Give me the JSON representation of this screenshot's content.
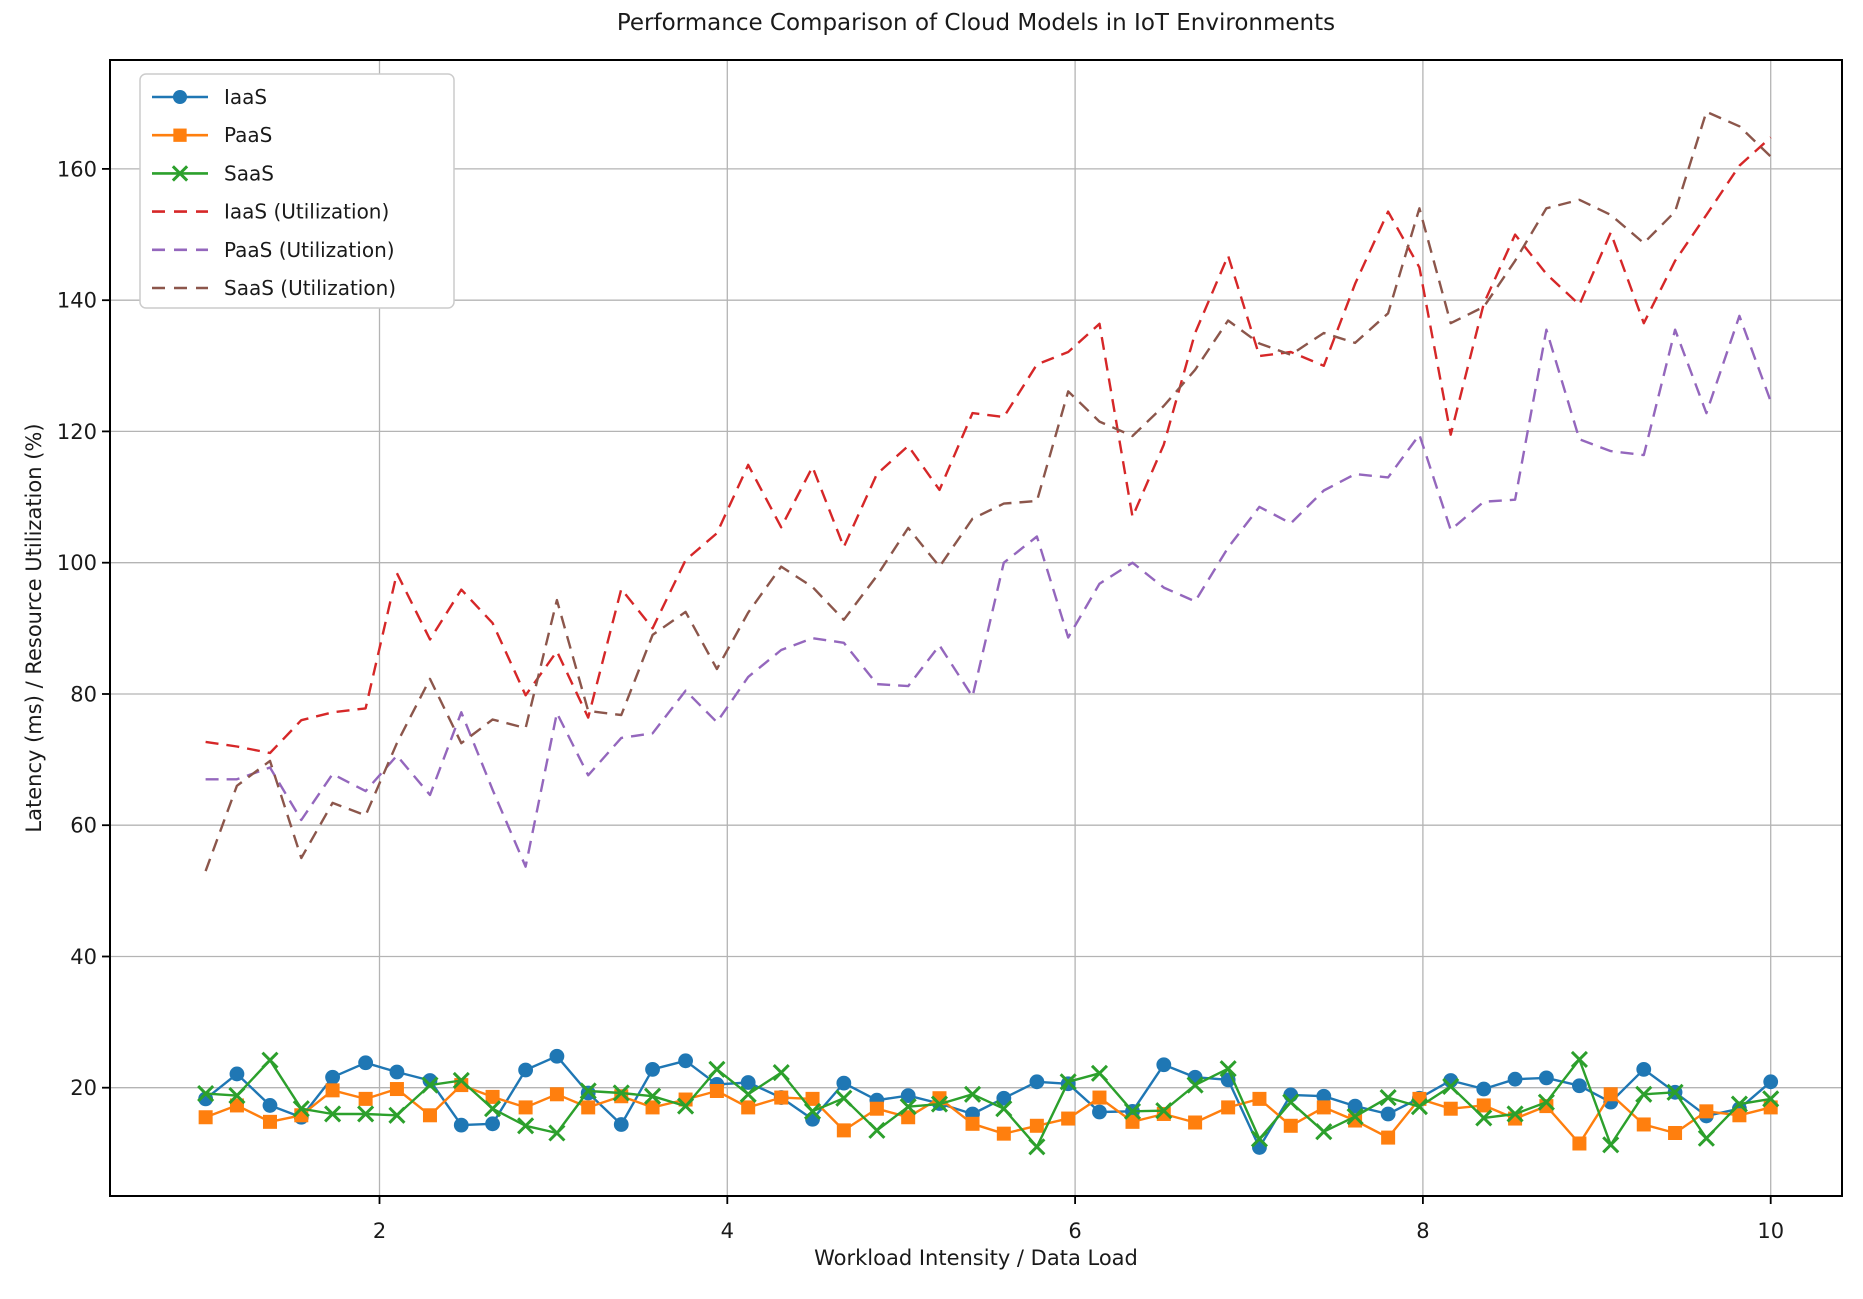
{
  "figure": {
    "title": "Performance Comparison of Cloud Models in IoT Environments",
    "xlabel": "Workload Intensity / Data Load",
    "ylabel": "Latency (ms) / Resource Utilization (%)"
  },
  "chart_data": {
    "type": "line",
    "title": "Performance Comparison of Cloud Models in IoT Environments",
    "xlabel": "Workload Intensity / Data Load",
    "ylabel": "Latency (ms) / Resource Utilization (%)",
    "xlim": [
      0.45,
      10.41
    ],
    "ylim": [
      3.5,
      176.6
    ],
    "xticks": [
      2,
      4,
      6,
      8,
      10
    ],
    "yticks": [
      20,
      40,
      60,
      80,
      100,
      120,
      140,
      160
    ],
    "grid": true,
    "grid_color": "#b4b4b4",
    "legend_position": "upper left",
    "x": [
      1,
      1.18,
      1.37,
      1.55,
      1.73,
      1.92,
      2.1,
      2.29,
      2.47,
      2.65,
      2.84,
      3.02,
      3.2,
      3.39,
      3.57,
      3.76,
      3.94,
      4.12,
      4.31,
      4.49,
      4.67,
      4.86,
      5.04,
      5.22,
      5.41,
      5.59,
      5.78,
      5.96,
      6.14,
      6.33,
      6.51,
      6.69,
      6.88,
      7.06,
      7.24,
      7.43,
      7.61,
      7.8,
      7.98,
      8.16,
      8.35,
      8.53,
      8.71,
      8.9,
      9.08,
      9.27,
      9.45,
      9.63,
      9.82,
      10
    ],
    "series": [
      {
        "name": "IaaS",
        "color": "#1f77b4",
        "style": "solid",
        "marker": "circle",
        "values": [
          18.3,
          22.1,
          17.3,
          15.5,
          21.6,
          23.8,
          22.4,
          21.1,
          14.3,
          14.5,
          22.7,
          24.8,
          19.2,
          14.4,
          22.8,
          24.1,
          20.5,
          20.8,
          18.5,
          15.2,
          20.7,
          18.1,
          18.8,
          17.6,
          16.0,
          18.4,
          20.9,
          20.6,
          16.3,
          16.4,
          23.5,
          21.6,
          21.2,
          10.9,
          18.9,
          18.7,
          17.2,
          16.0,
          18.4,
          21.1,
          19.8,
          21.3,
          21.5,
          20.3,
          17.8,
          22.8,
          19.3,
          15.7,
          16.8,
          20.9
        ]
      },
      {
        "name": "PaaS",
        "color": "#ff7f0e",
        "style": "solid",
        "marker": "square",
        "values": [
          15.5,
          17.3,
          14.8,
          15.8,
          19.6,
          18.3,
          19.8,
          15.8,
          20.4,
          18.6,
          17.0,
          19.0,
          17.0,
          18.7,
          17.0,
          18.2,
          19.5,
          17.0,
          18.5,
          18.3,
          13.5,
          16.8,
          15.5,
          18.4,
          14.5,
          13.0,
          14.2,
          15.3,
          18.5,
          14.8,
          16.0,
          14.7,
          17.0,
          18.3,
          14.2,
          17.0,
          15.0,
          12.4,
          18.3,
          16.8,
          17.3,
          15.3,
          17.2,
          11.5,
          19.0,
          14.4,
          13.1,
          16.4,
          15.8,
          17.0
        ]
      },
      {
        "name": "SaaS",
        "color": "#2ca02c",
        "style": "solid",
        "marker": "x",
        "values": [
          19.1,
          18.8,
          24.2,
          16.8,
          16.0,
          16.0,
          15.8,
          20.4,
          21.1,
          16.8,
          14.2,
          13.1,
          19.5,
          19.2,
          18.7,
          17.2,
          22.8,
          19.0,
          22.3,
          16.4,
          18.4,
          13.5,
          17.1,
          17.5,
          19.0,
          16.8,
          11.0,
          20.9,
          22.2,
          16.4,
          16.5,
          20.4,
          22.9,
          12.2,
          17.8,
          13.3,
          15.6,
          18.5,
          17.1,
          20.2,
          15.4,
          16.0,
          17.8,
          24.3,
          11.3,
          19.0,
          19.3,
          12.3,
          17.5,
          18.3
        ]
      },
      {
        "name": "IaaS (Utilization)",
        "color": "#d62728",
        "style": "dashed",
        "marker": "none",
        "values": [
          72.7,
          72.0,
          71.0,
          76.0,
          77.2,
          77.8,
          98.4,
          88.3,
          95.9,
          90.8,
          79.8,
          86.5,
          76.4,
          96.0,
          90.0,
          100.4,
          104.5,
          114.9,
          105.4,
          114.6,
          102.4,
          113.5,
          117.8,
          111.1,
          122.8,
          122.2,
          130.2,
          132.1,
          136.4,
          107.0,
          118.0,
          135.0,
          146.8,
          131.5,
          132.1,
          130.0,
          142.5,
          153.5,
          145.0,
          119.5,
          139.5,
          150.0,
          144.0,
          139.3,
          150.3,
          136.5,
          146.0,
          153.0,
          160.5,
          164.8
        ]
      },
      {
        "name": "PaaS (Utilization)",
        "color": "#9467bd",
        "style": "dashed",
        "marker": "none",
        "values": [
          67.0,
          67.0,
          68.8,
          60.8,
          67.8,
          65.2,
          70.6,
          64.6,
          77.2,
          65.4,
          53.7,
          77.1,
          67.6,
          73.3,
          74.0,
          80.5,
          75.7,
          82.6,
          86.7,
          88.5,
          87.8,
          81.5,
          81.2,
          87.4,
          79.6,
          100.0,
          104.0,
          88.6,
          96.8,
          100.0,
          96.2,
          94.1,
          102.3,
          108.5,
          106.0,
          111.0,
          113.5,
          113.0,
          119.5,
          105.0,
          109.3,
          109.6,
          135.5,
          118.8,
          117.0,
          116.4,
          135.5,
          122.8,
          137.6,
          124.6
        ]
      },
      {
        "name": "SaaS (Utilization)",
        "color": "#8c564b",
        "style": "dashed",
        "marker": "none",
        "values": [
          53.0,
          66.0,
          69.8,
          55.0,
          63.4,
          61.5,
          72.5,
          82.3,
          72.5,
          76.1,
          74.8,
          94.3,
          77.4,
          76.8,
          89.0,
          92.5,
          83.8,
          92.4,
          99.4,
          96.3,
          91.3,
          98.0,
          105.3,
          99.4,
          106.7,
          109.0,
          109.4,
          126.1,
          121.5,
          119.3,
          123.9,
          129.4,
          136.9,
          133.4,
          131.7,
          135.0,
          133.5,
          138.0,
          154.0,
          136.5,
          139.0,
          146.0,
          154.0,
          155.3,
          153.0,
          148.7,
          153.5,
          168.7,
          166.5,
          161.9
        ]
      }
    ]
  }
}
